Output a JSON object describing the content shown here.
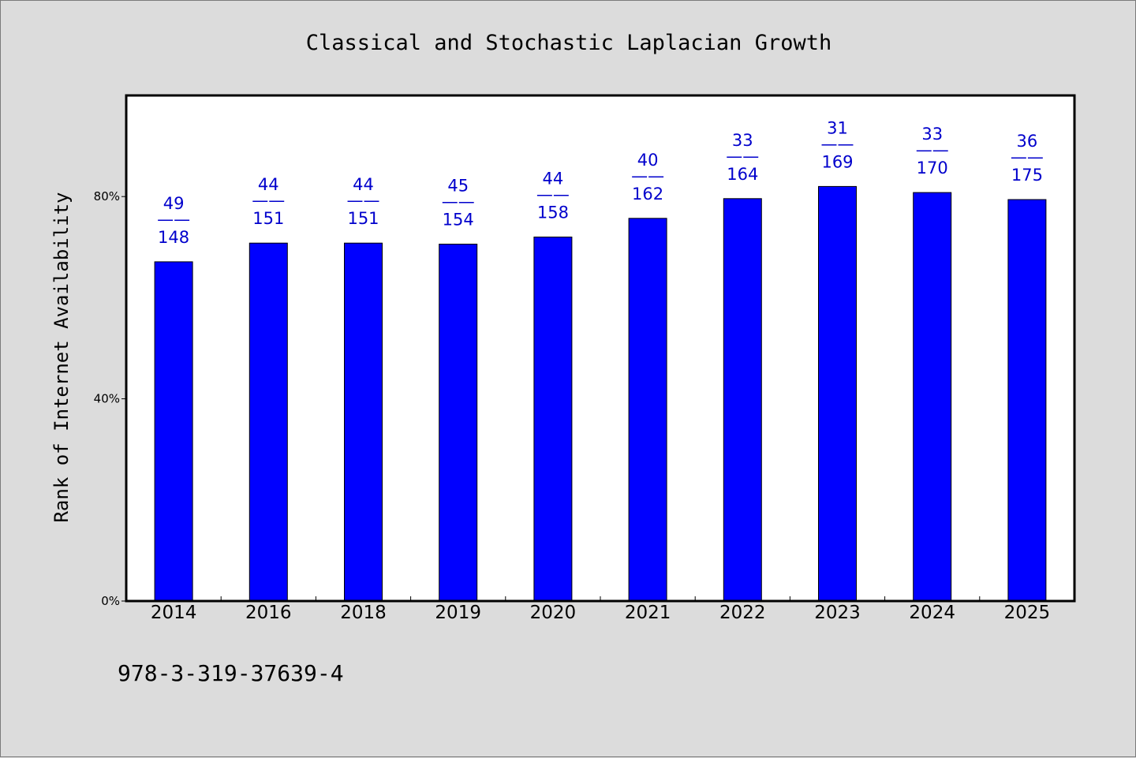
{
  "chart_data": {
    "type": "bar",
    "title": "Classical and Stochastic Laplacian Growth",
    "xlabel": "",
    "ylabel": "Rank of Internet Availability",
    "ylim": [
      0,
      100
    ],
    "yticks": [
      0,
      40,
      80
    ],
    "ytick_labels": [
      "0%",
      "40%",
      "80%"
    ],
    "grid": false,
    "legend": "none",
    "categories": [
      "2014",
      "2016",
      "2018",
      "2019",
      "2020",
      "2021",
      "2022",
      "2023",
      "2024",
      "2025"
    ],
    "values": [
      67.1,
      70.8,
      70.8,
      70.6,
      72.0,
      75.7,
      79.6,
      82.0,
      80.8,
      79.4
    ],
    "labels_top": [
      "49",
      "44",
      "44",
      "45",
      "44",
      "40",
      "33",
      "31",
      "33",
      "36"
    ],
    "labels_sep": "——",
    "labels_bottom": [
      "148",
      "151",
      "151",
      "154",
      "158",
      "162",
      "164",
      "169",
      "170",
      "175"
    ],
    "colors": {
      "bar": "#0000ff",
      "label": "#0000cc",
      "plot_bg": "#ffffff",
      "page_bg": "#dcdcdc"
    }
  },
  "footnote": "978-3-319-37639-4"
}
